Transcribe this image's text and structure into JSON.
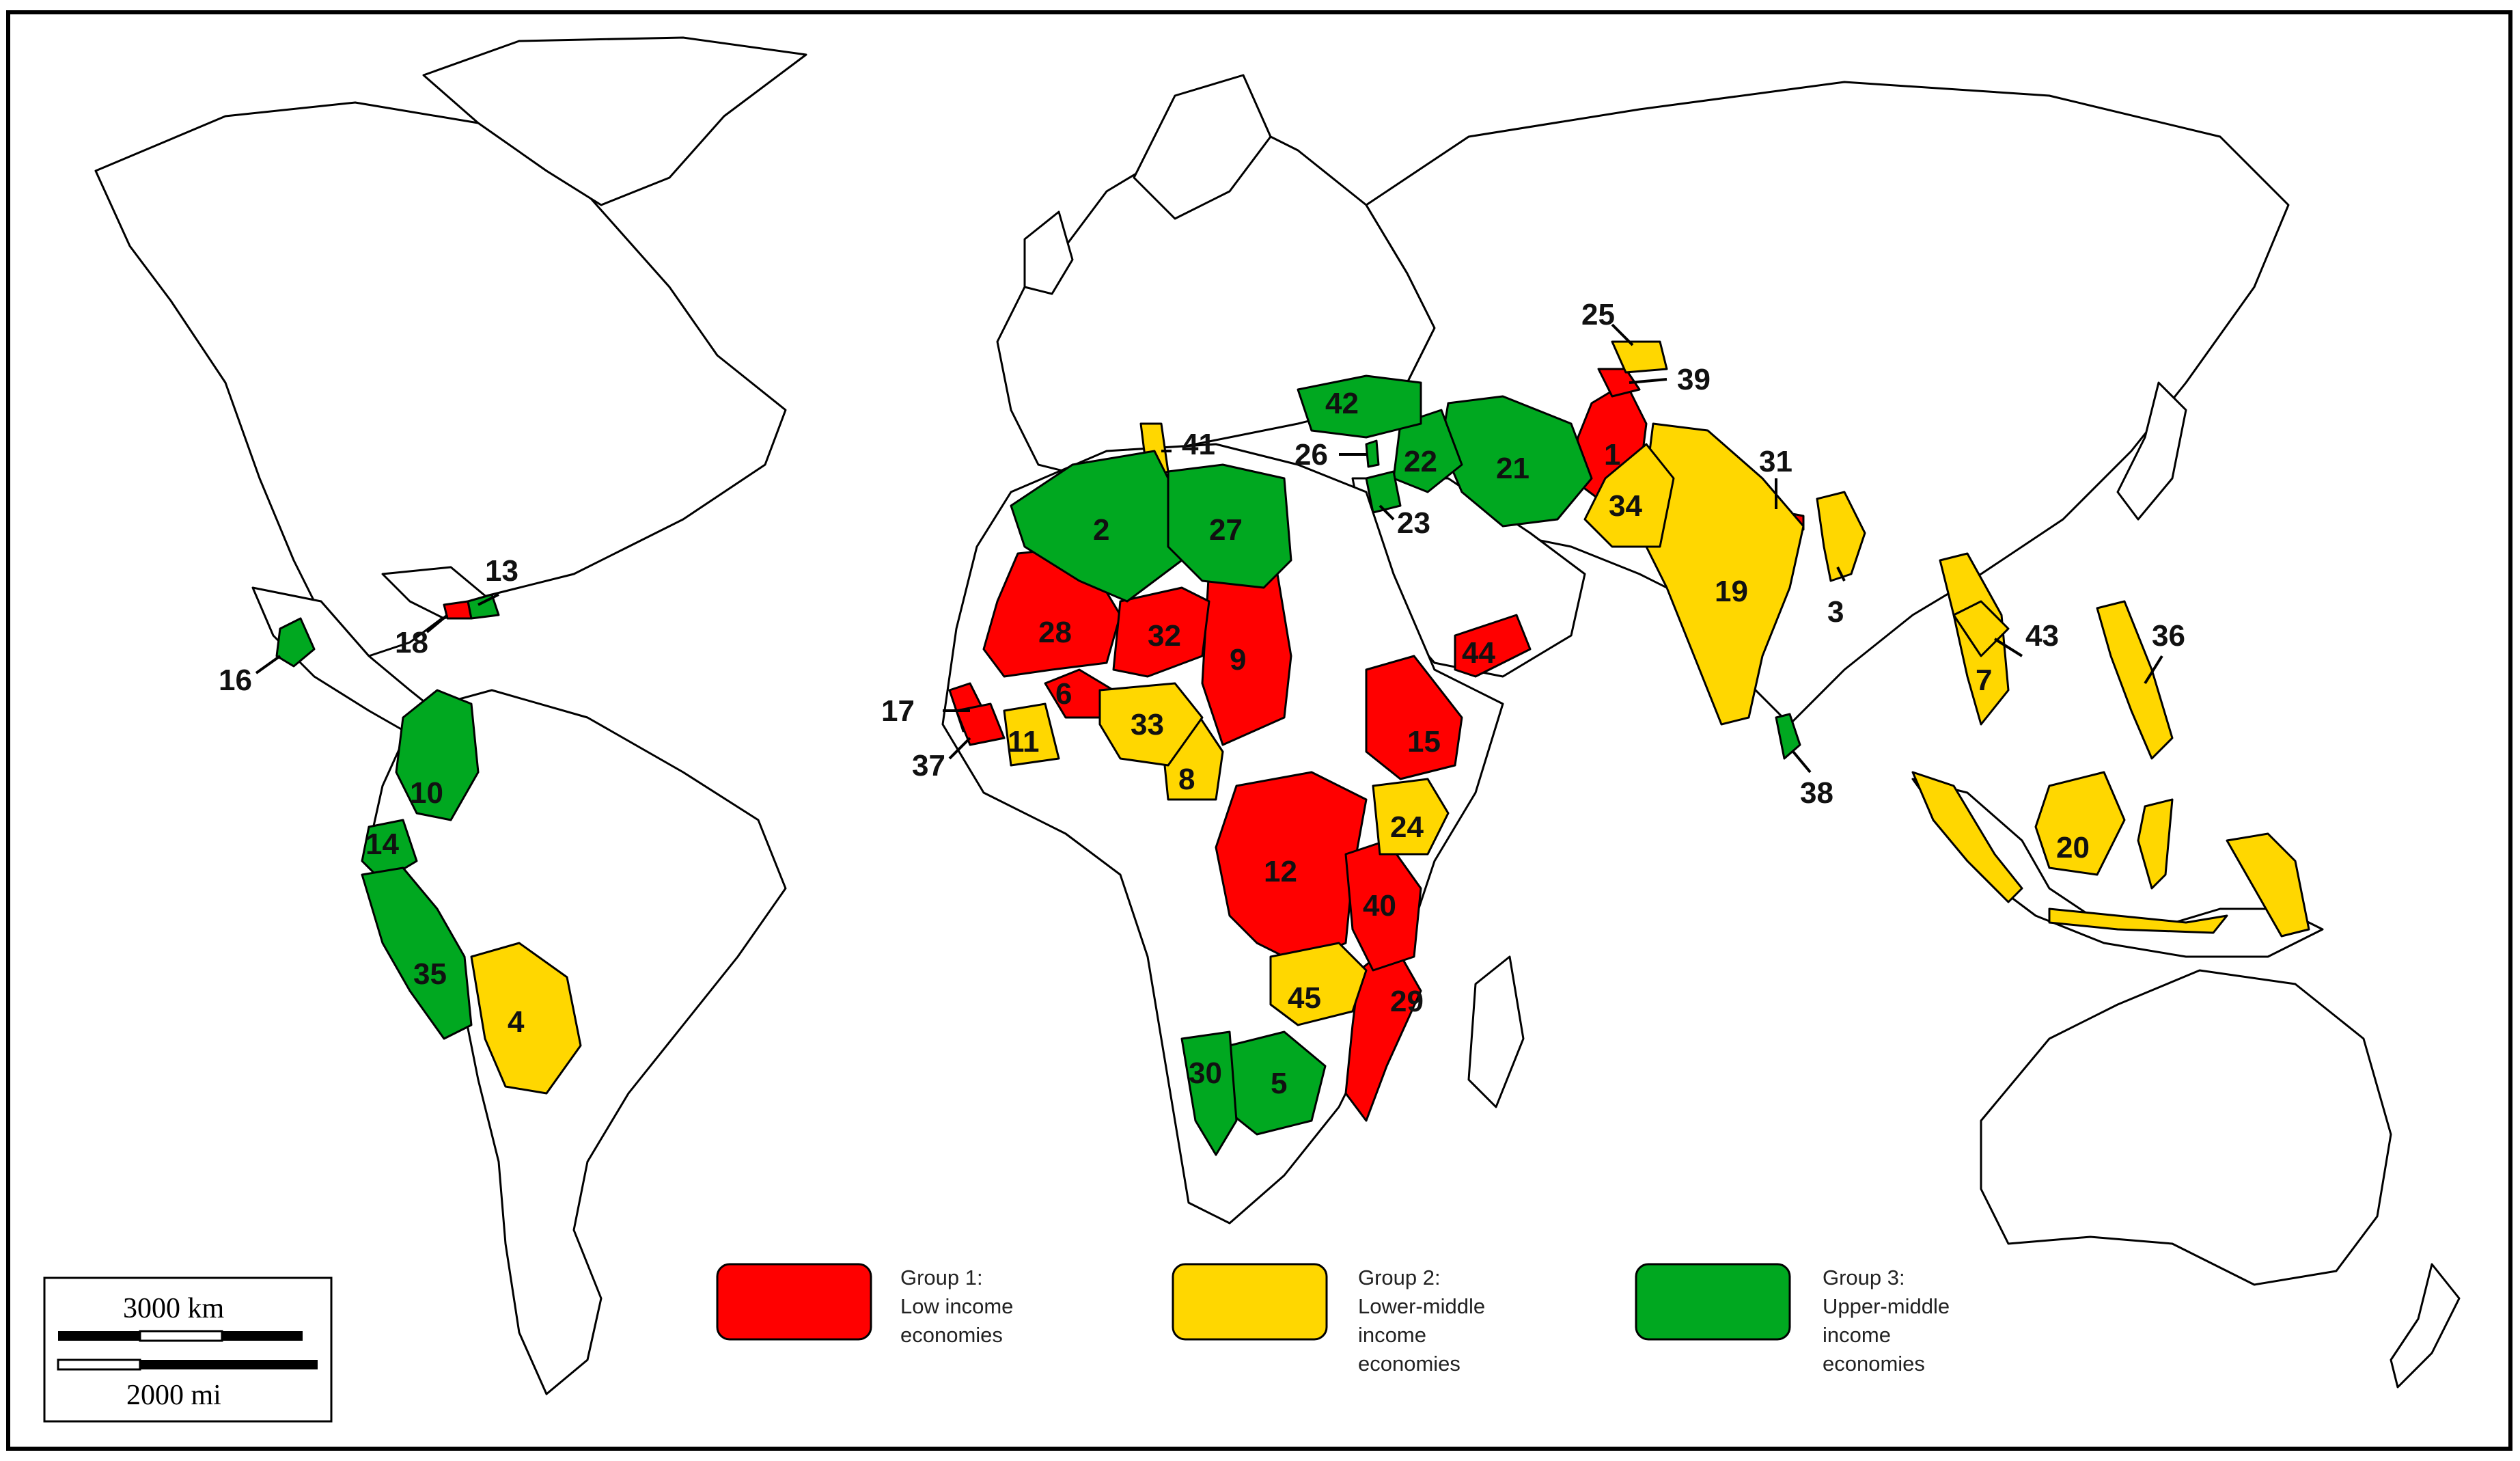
{
  "legend": {
    "group1": {
      "line1": "Group 1:",
      "line2": "Low income",
      "line3": "economies",
      "color": "#ff0000"
    },
    "group2": {
      "line1": "Group 2:",
      "line2": "Lower-middle",
      "line3": "income",
      "line4": "economies",
      "color": "#ffd700"
    },
    "group3": {
      "line1": "Group 3:",
      "line2": "Upper-middle",
      "line3": "income",
      "line4": "economies",
      "color": "#00a820"
    }
  },
  "scale_bar": {
    "km_label": "3000 km",
    "mi_label": "2000 mi"
  },
  "countries": [
    {
      "num": "1",
      "group": 1
    },
    {
      "num": "2",
      "group": 3
    },
    {
      "num": "3",
      "group": 2
    },
    {
      "num": "4",
      "group": 2
    },
    {
      "num": "5",
      "group": 3
    },
    {
      "num": "6",
      "group": 1
    },
    {
      "num": "7",
      "group": 2
    },
    {
      "num": "8",
      "group": 2
    },
    {
      "num": "9",
      "group": 1
    },
    {
      "num": "10",
      "group": 3
    },
    {
      "num": "11",
      "group": 2
    },
    {
      "num": "12",
      "group": 1
    },
    {
      "num": "13",
      "group": 3
    },
    {
      "num": "14",
      "group": 3
    },
    {
      "num": "15",
      "group": 1
    },
    {
      "num": "16",
      "group": 3
    },
    {
      "num": "17",
      "group": 1
    },
    {
      "num": "18",
      "group": 1
    },
    {
      "num": "19",
      "group": 2
    },
    {
      "num": "20",
      "group": 2
    },
    {
      "num": "21",
      "group": 3
    },
    {
      "num": "22",
      "group": 3
    },
    {
      "num": "23",
      "group": 3
    },
    {
      "num": "24",
      "group": 2
    },
    {
      "num": "25",
      "group": 2
    },
    {
      "num": "26",
      "group": 3
    },
    {
      "num": "27",
      "group": 3
    },
    {
      "num": "28",
      "group": 1
    },
    {
      "num": "29",
      "group": 1
    },
    {
      "num": "30",
      "group": 3
    },
    {
      "num": "31",
      "group": 1
    },
    {
      "num": "32",
      "group": 1
    },
    {
      "num": "33",
      "group": 2
    },
    {
      "num": "34",
      "group": 2
    },
    {
      "num": "35",
      "group": 3
    },
    {
      "num": "36",
      "group": 2
    },
    {
      "num": "37",
      "group": 1
    },
    {
      "num": "38",
      "group": 3
    },
    {
      "num": "39",
      "group": 1
    },
    {
      "num": "40",
      "group": 1
    },
    {
      "num": "41",
      "group": 2
    },
    {
      "num": "42",
      "group": 3
    },
    {
      "num": "43",
      "group": 2
    },
    {
      "num": "44",
      "group": 1
    },
    {
      "num": "45",
      "group": 2
    }
  ]
}
